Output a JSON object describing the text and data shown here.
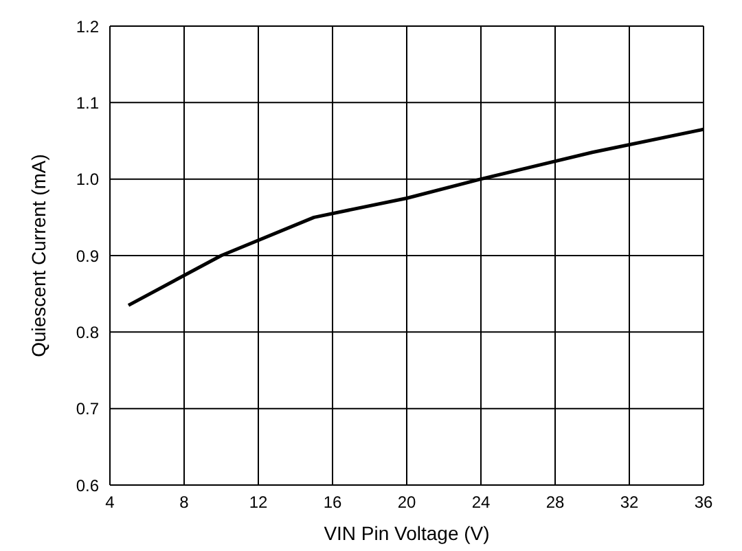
{
  "chart_data": {
    "type": "line",
    "xlabel": "VIN Pin Voltage (V)",
    "ylabel": "Quiescent Current (mA)",
    "x": [
      5,
      10,
      15,
      20,
      24,
      30,
      36
    ],
    "series": [
      {
        "color": "#000000",
        "values": [
          0.835,
          0.9,
          0.95,
          0.975,
          1.0,
          1.035,
          1.065
        ]
      }
    ],
    "xlim": [
      4,
      36
    ],
    "xticks": [
      4,
      8,
      12,
      16,
      20,
      24,
      28,
      32,
      36
    ],
    "ylim": [
      0.6,
      1.2
    ],
    "yticks": [
      0.6,
      0.7,
      0.8,
      0.9,
      {
        "value": 1,
        "label": "1.0"
      },
      1.1,
      1.2
    ],
    "grid": true,
    "marker": "none",
    "line_style": "solid"
  }
}
